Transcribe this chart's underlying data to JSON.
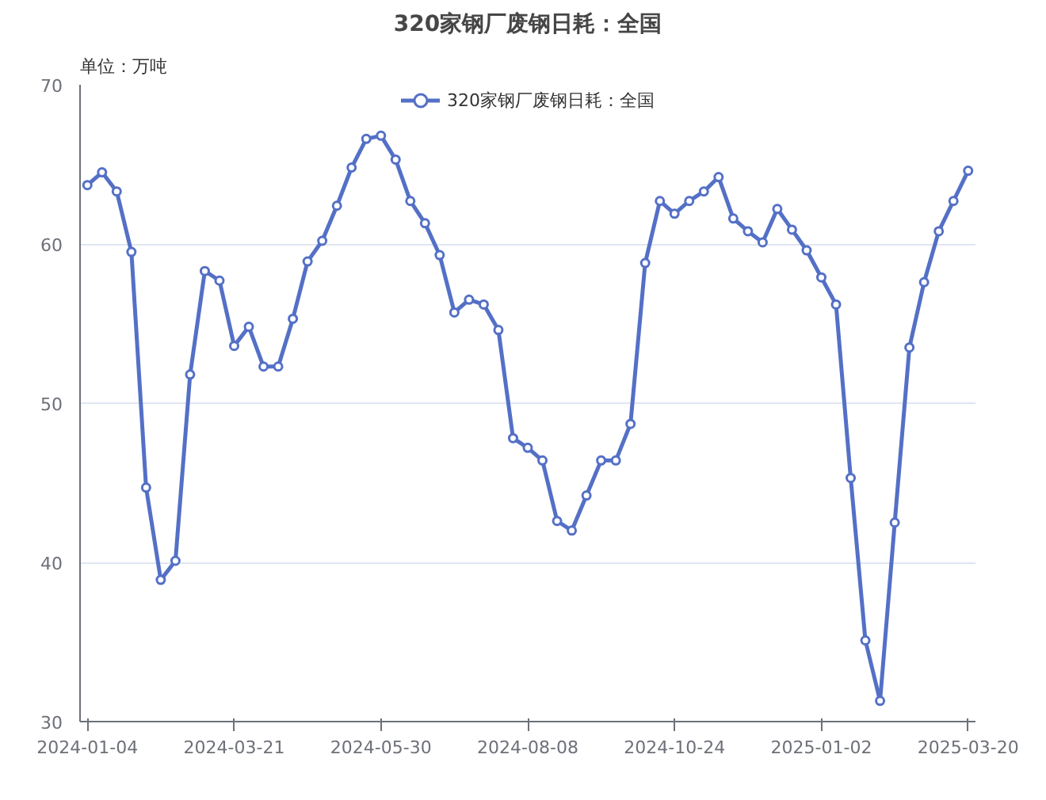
{
  "chart_data": {
    "type": "line",
    "title": "320家钢厂废钢日耗：全国",
    "ylabel": "单位：万吨",
    "categories": [
      "2024-01-04",
      null,
      null,
      null,
      null,
      null,
      null,
      null,
      null,
      null,
      "2024-03-21",
      null,
      null,
      null,
      null,
      null,
      null,
      null,
      null,
      null,
      "2024-05-30",
      null,
      null,
      null,
      null,
      null,
      null,
      null,
      null,
      null,
      "2024-08-08",
      null,
      null,
      null,
      null,
      null,
      null,
      null,
      null,
      null,
      "2024-10-24",
      null,
      null,
      null,
      null,
      null,
      null,
      null,
      null,
      null,
      "2025-01-02",
      null,
      null,
      null,
      null,
      null,
      null,
      null,
      null,
      null,
      "2025-03-20"
    ],
    "series": [
      {
        "name": "320家钢厂废钢日耗：全国",
        "color": "#5470c6",
        "values": [
          63.7,
          64.5,
          63.3,
          59.5,
          44.7,
          38.9,
          40.1,
          51.8,
          58.3,
          57.7,
          53.6,
          54.8,
          52.3,
          52.3,
          55.3,
          58.9,
          60.2,
          62.4,
          64.8,
          66.6,
          66.8,
          65.3,
          62.7,
          61.3,
          59.3,
          55.7,
          56.5,
          56.2,
          54.6,
          47.8,
          47.2,
          46.4,
          42.6,
          42.0,
          44.2,
          46.4,
          46.4,
          48.7,
          58.8,
          62.7,
          61.9,
          62.7,
          63.3,
          64.2,
          61.6,
          60.8,
          60.1,
          62.2,
          60.9,
          59.6,
          57.9,
          56.2,
          45.3,
          35.1,
          31.3,
          42.5,
          53.5,
          57.6,
          60.8,
          62.7,
          64.6
        ]
      }
    ],
    "ylim": [
      30,
      70
    ],
    "yticks": [
      30,
      40,
      50,
      60,
      70
    ],
    "grid": "y",
    "legend": "top",
    "marker": "circle",
    "line_style": "solid"
  }
}
